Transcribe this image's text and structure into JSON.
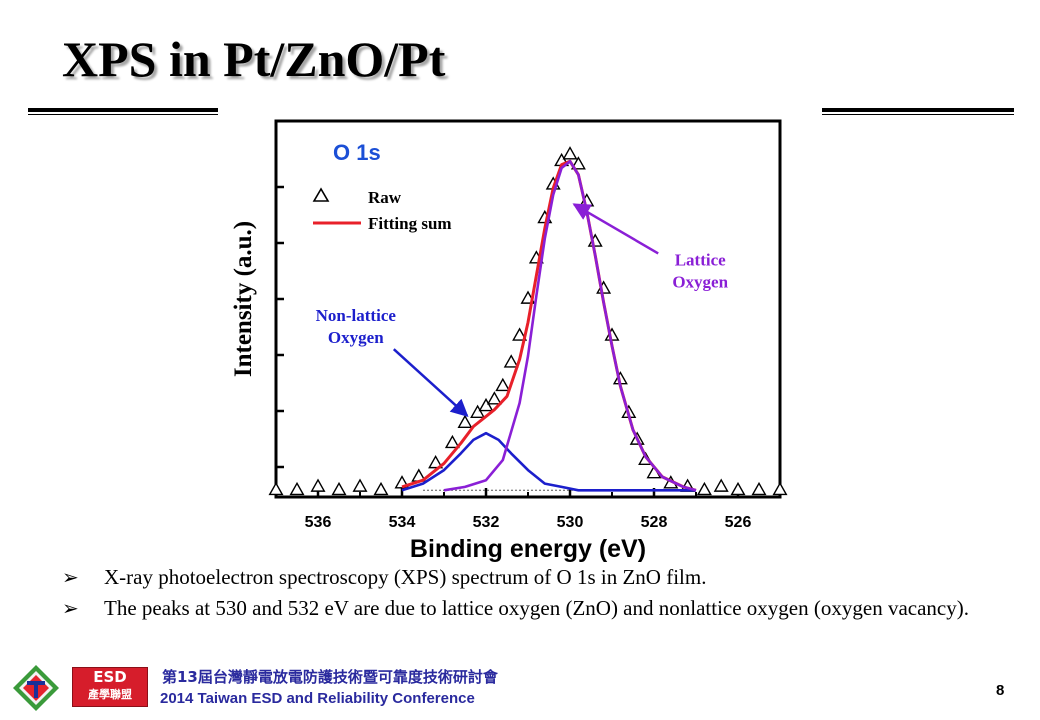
{
  "slide": {
    "title": "XPS in Pt/ZnO/Pt",
    "bullet_marker": "➢",
    "bullets": [
      "X-ray photoelectron spectroscopy (XPS) spectrum of O 1s in ZnO film.",
      "The peaks at 530 and 532 eV are due to lattice oxygen (ZnO) and nonlattice oxygen (oxygen vacancy)."
    ],
    "footer": {
      "badge_top": "ESD",
      "badge_bottom": "產學聯盟",
      "conference_cn": "第13屆台灣靜電放電防護技術暨可靠度技術研討會",
      "conference_en": "2014 Taiwan ESD and Reliability Conference",
      "page_number": "8"
    }
  },
  "chart_data": {
    "type": "line",
    "title": "O 1s",
    "xlabel": "Binding energy (eV)",
    "ylabel": "Intensity (a.u.)",
    "xlim": [
      537,
      525
    ],
    "x_reversed": true,
    "ylim": [
      0,
      1.12
    ],
    "x_ticks": [
      536,
      534,
      532,
      530,
      528,
      526
    ],
    "grid": false,
    "legend": {
      "placement": "top-left",
      "entries": [
        {
          "label": "Raw",
          "marker": "triangle",
          "color": "#000000"
        },
        {
          "label": "Fitting sum",
          "color": "#e8202a"
        }
      ]
    },
    "baseline": 0.02,
    "series": [
      {
        "name": "Raw",
        "kind": "scatter-triangle",
        "color": "#000000",
        "x": [
          537.0,
          536.5,
          536.0,
          535.5,
          535.0,
          534.5,
          534.0,
          533.6,
          533.2,
          532.8,
          532.5,
          532.2,
          532.0,
          531.8,
          531.6,
          531.4,
          531.2,
          531.0,
          530.8,
          530.6,
          530.4,
          530.2,
          530.0,
          529.8,
          529.6,
          529.4,
          529.2,
          529.0,
          528.8,
          528.6,
          528.4,
          528.2,
          528.0,
          527.6,
          527.2,
          526.8,
          526.4,
          526.0,
          525.5,
          525.0
        ],
        "y": [
          0.02,
          0.02,
          0.03,
          0.02,
          0.03,
          0.02,
          0.04,
          0.06,
          0.1,
          0.16,
          0.22,
          0.25,
          0.27,
          0.29,
          0.33,
          0.4,
          0.48,
          0.59,
          0.71,
          0.83,
          0.93,
          1.0,
          1.02,
          0.99,
          0.88,
          0.76,
          0.62,
          0.48,
          0.35,
          0.25,
          0.17,
          0.11,
          0.07,
          0.04,
          0.03,
          0.02,
          0.03,
          0.02,
          0.02,
          0.02
        ]
      },
      {
        "name": "Fitting sum",
        "kind": "line",
        "color": "#e8202a",
        "x": [
          534.0,
          533.5,
          533.0,
          532.6,
          532.3,
          532.0,
          531.8,
          531.5,
          531.2,
          531.0,
          530.8,
          530.6,
          530.4,
          530.2,
          530.0,
          529.8,
          529.6,
          529.4,
          529.2,
          529.0,
          528.8,
          528.5,
          528.2,
          527.8,
          527.3,
          527.0
        ],
        "y": [
          0.03,
          0.05,
          0.1,
          0.16,
          0.21,
          0.24,
          0.26,
          0.3,
          0.41,
          0.52,
          0.66,
          0.8,
          0.92,
          0.99,
          1.0,
          0.96,
          0.85,
          0.72,
          0.58,
          0.45,
          0.33,
          0.2,
          0.12,
          0.06,
          0.03,
          0.02
        ]
      },
      {
        "name": "Non-lattice Oxygen",
        "kind": "line",
        "color": "#1c1fcc",
        "x": [
          534.0,
          533.5,
          533.0,
          532.6,
          532.3,
          532.0,
          531.7,
          531.4,
          531.0,
          530.6,
          530.2,
          529.8,
          529.0,
          528.0,
          527.0
        ],
        "y": [
          0.02,
          0.04,
          0.08,
          0.13,
          0.17,
          0.19,
          0.17,
          0.13,
          0.08,
          0.04,
          0.03,
          0.02,
          0.02,
          0.02,
          0.02
        ]
      },
      {
        "name": "Lattice Oxygen",
        "kind": "line",
        "color": "#8a1fd6",
        "x": [
          533.0,
          532.5,
          532.0,
          531.6,
          531.2,
          531.0,
          530.8,
          530.6,
          530.4,
          530.2,
          530.0,
          529.8,
          529.6,
          529.4,
          529.2,
          529.0,
          528.8,
          528.5,
          528.2,
          527.8,
          527.3,
          527.0
        ],
        "y": [
          0.02,
          0.03,
          0.05,
          0.11,
          0.28,
          0.42,
          0.6,
          0.77,
          0.9,
          0.98,
          1.0,
          0.96,
          0.85,
          0.72,
          0.58,
          0.45,
          0.33,
          0.2,
          0.12,
          0.06,
          0.03,
          0.02
        ]
      }
    ],
    "annotations": [
      {
        "text": "Lattice Oxygen",
        "color": "#8a1fd6",
        "points_to": {
          "x": 530.0,
          "y": 0.86
        },
        "text_at": {
          "x": 526.9,
          "y": 0.66
        }
      },
      {
        "text": "Non-lattice Oxygen",
        "color": "#1c1fcc",
        "points_to": {
          "x": 532.4,
          "y": 0.23
        },
        "text_at": {
          "x": 535.1,
          "y": 0.5
        }
      }
    ],
    "annotation_lines": [
      "Non-lattice",
      "Oxygen",
      "Lattice",
      "Oxygen"
    ]
  }
}
